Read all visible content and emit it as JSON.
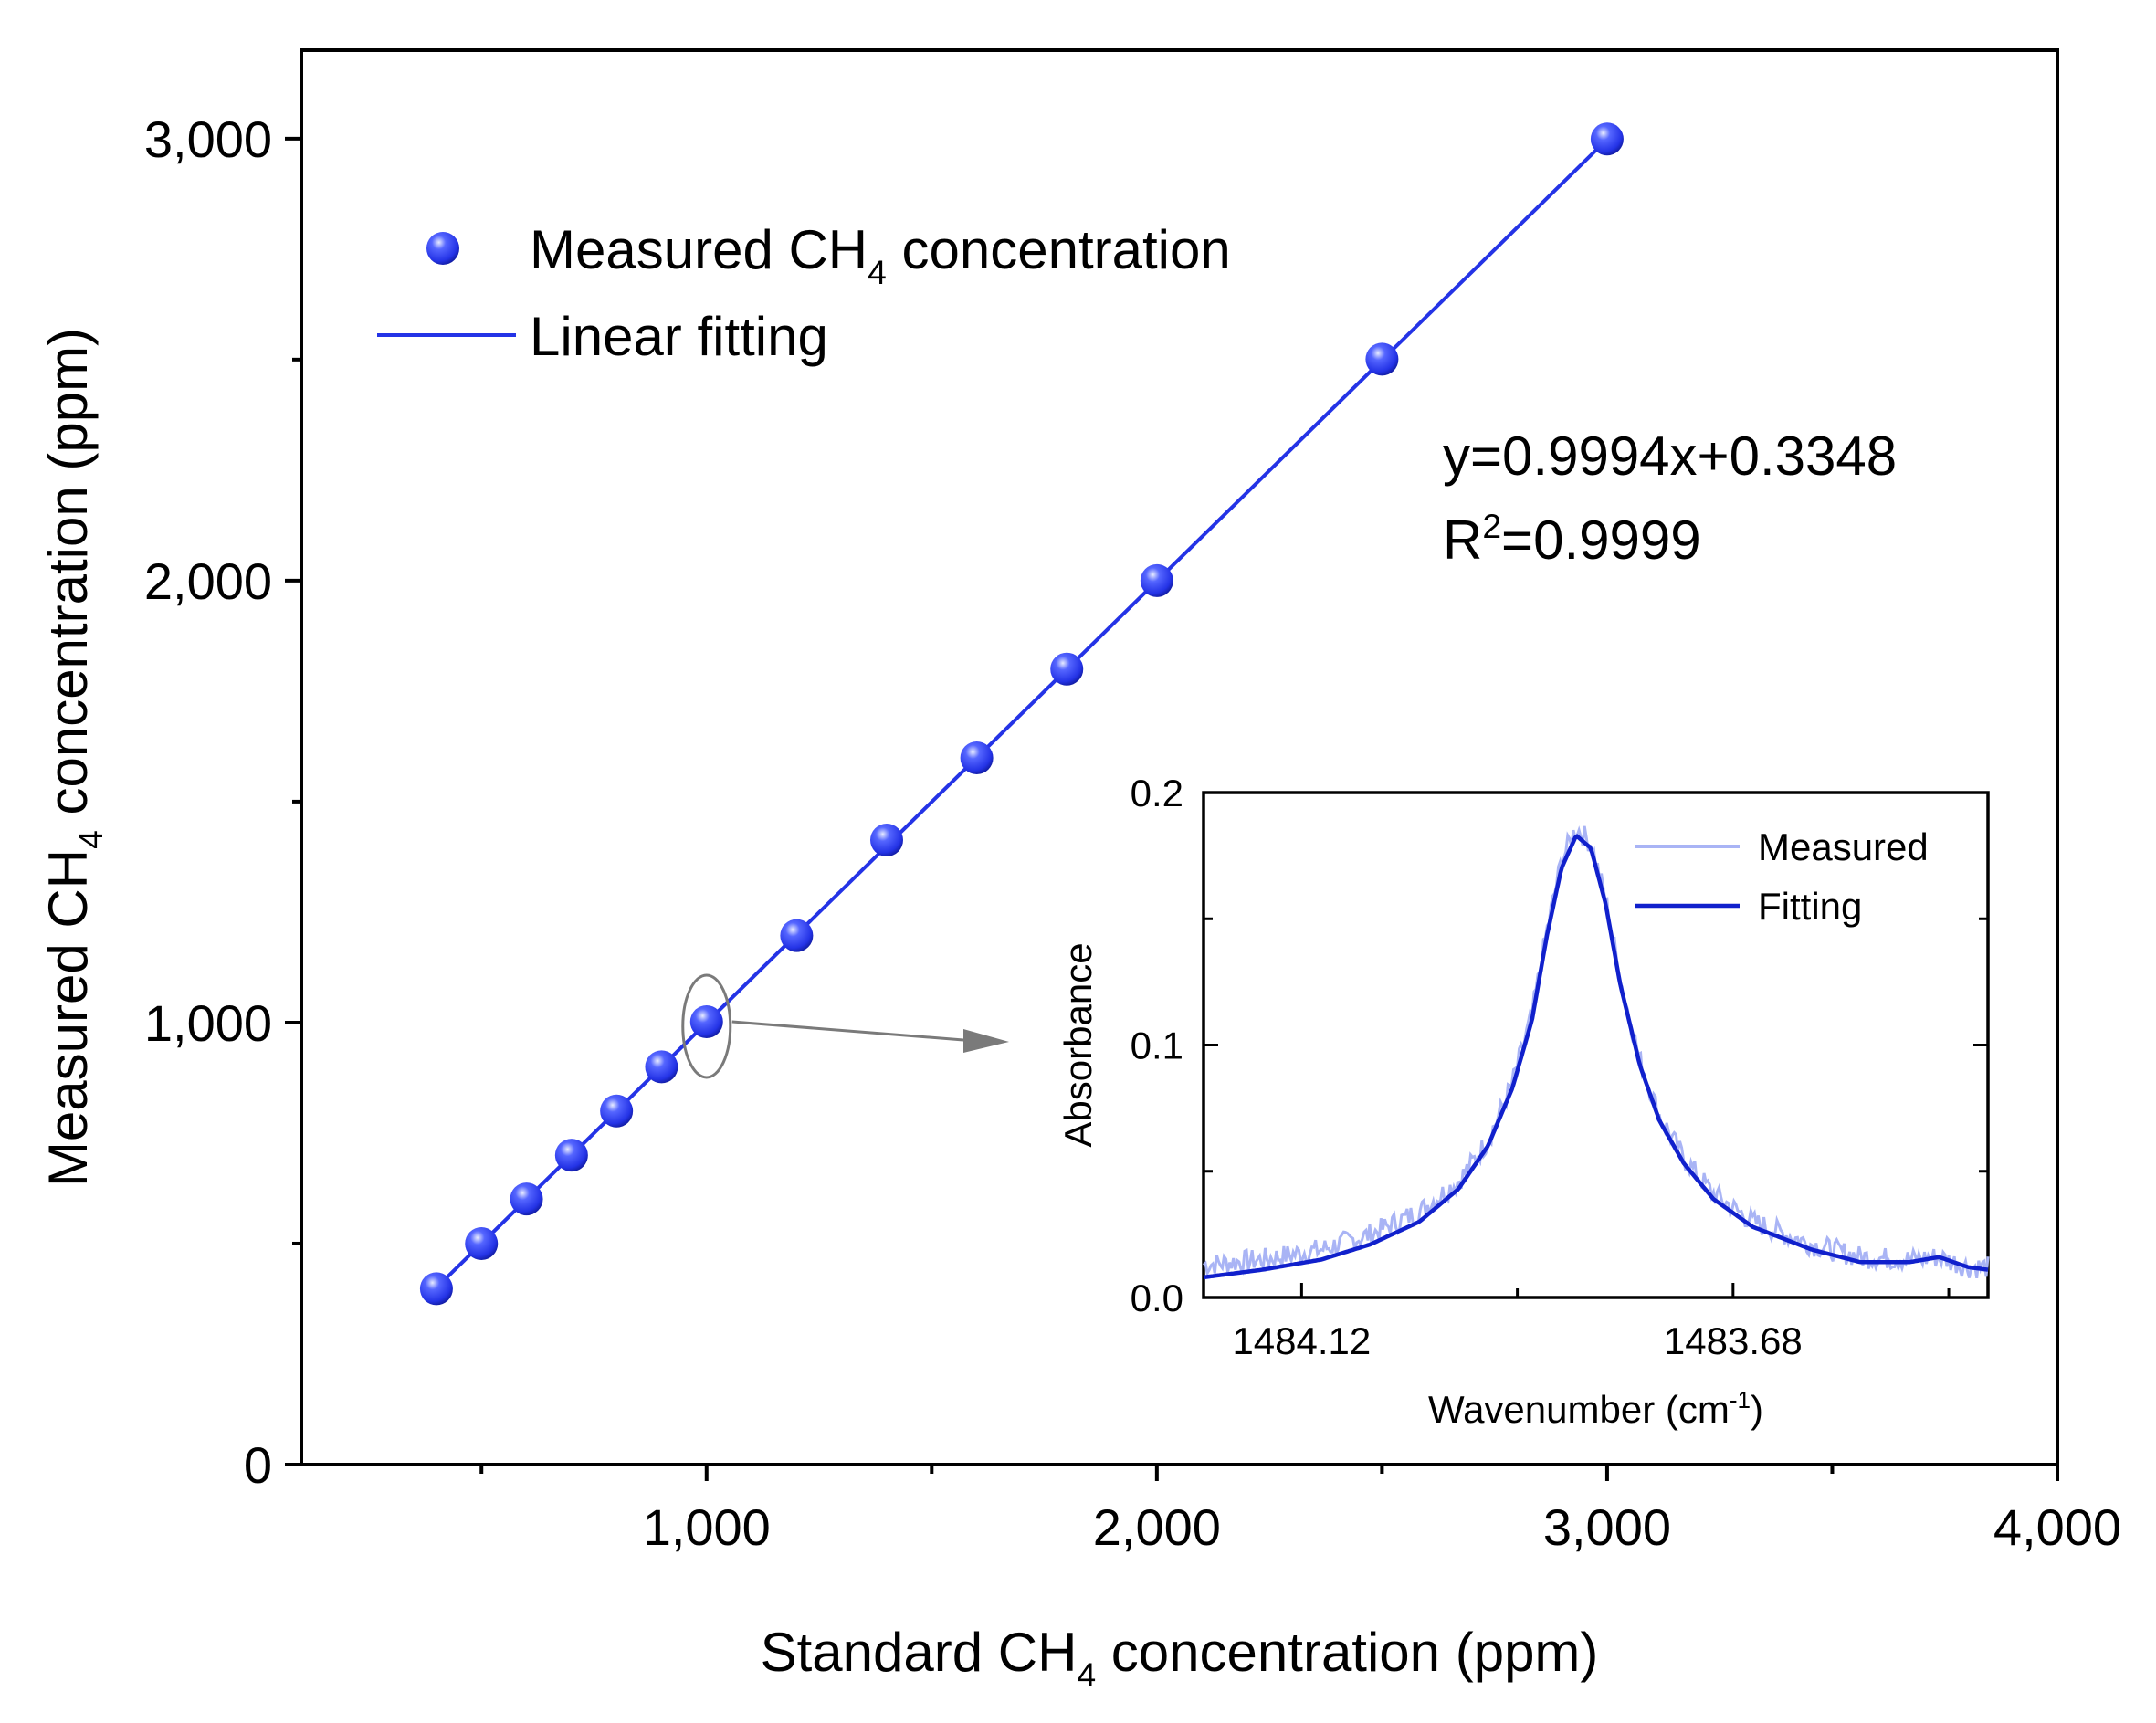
{
  "chart_data": [
    {
      "type": "scatter",
      "xlabel": {
        "pre": "Standard CH",
        "sub": "4",
        "post": " concentration (ppm)"
      },
      "ylabel": {
        "pre": "Measured CH",
        "sub": "4",
        "post": " concentration (ppm)"
      },
      "xlim": [
        100,
        4000
      ],
      "ylim": [
        0,
        3200
      ],
      "xticks": [
        {
          "value": 1000,
          "label": "1,000"
        },
        {
          "value": 2000,
          "label": "2,000"
        },
        {
          "value": 3000,
          "label": "3,000"
        },
        {
          "value": 4000,
          "label": "4,000"
        }
      ],
      "xminor": [
        500,
        1500,
        2500,
        3500
      ],
      "yticks": [
        {
          "value": 0,
          "label": "0"
        },
        {
          "value": 1000,
          "label": "1,000"
        },
        {
          "value": 2000,
          "label": "2,000"
        },
        {
          "value": 3000,
          "label": "3,000"
        }
      ],
      "yminor": [
        500,
        1500,
        2500
      ],
      "series": [
        {
          "name": {
            "pre": "Measured CH",
            "sub": "4",
            "post": " concentration"
          },
          "kind": "points",
          "color": "#2433e6",
          "x": [
            400,
            500,
            600,
            700,
            800,
            900,
            1000,
            1200,
            1400,
            1600,
            1800,
            2000,
            2500,
            3000
          ],
          "y": [
            398,
            500,
            601,
            700,
            800,
            900,
            1002,
            1197,
            1413,
            1599,
            1800,
            2000,
            2501,
            2999
          ]
        },
        {
          "name": "Linear fitting",
          "kind": "line",
          "color": "#2433e6",
          "slope": 0.9994,
          "intercept": 0.3348,
          "x_range": [
            400,
            3000
          ]
        }
      ],
      "annotations": {
        "equation": "y=0.9994x+0.3348",
        "r2": {
          "pre": "R",
          "sup": "2",
          "post": "=0.9999"
        }
      },
      "highlight_point": {
        "x": 1000,
        "y": 1002
      },
      "legend_position": "top-left"
    },
    {
      "type": "line",
      "xlabel": {
        "pre": "Wavenumber (cm",
        "sup": "-1",
        "post": ")"
      },
      "ylabel": "Absorbance",
      "xlim": [
        1484.22,
        1483.42
      ],
      "x_reversed": true,
      "ylim": [
        0,
        0.2
      ],
      "xticks": [
        {
          "value": 1484.12,
          "label": "1484.12"
        },
        {
          "value": 1483.68,
          "label": "1483.68"
        }
      ],
      "xminor": [
        1483.9,
        1483.46
      ],
      "yticks": [
        {
          "value": 0.0,
          "label": "0.0"
        },
        {
          "value": 0.1,
          "label": "0.1"
        },
        {
          "value": 0.2,
          "label": "0.2"
        }
      ],
      "yminor": [
        0.05,
        0.15
      ],
      "series": [
        {
          "name": "Measured",
          "color": "#a9b4f5",
          "noisy": true,
          "x": [
            1484.22,
            1484.16,
            1484.1,
            1484.05,
            1484.0,
            1483.96,
            1483.93,
            1483.905,
            1483.885,
            1483.87,
            1483.855,
            1483.84,
            1483.825,
            1483.81,
            1483.795,
            1483.775,
            1483.755,
            1483.73,
            1483.7,
            1483.66,
            1483.6,
            1483.55,
            1483.5,
            1483.47,
            1483.44,
            1483.42
          ],
          "y": [
            0.013,
            0.015,
            0.019,
            0.025,
            0.034,
            0.046,
            0.062,
            0.085,
            0.112,
            0.145,
            0.173,
            0.186,
            0.18,
            0.158,
            0.126,
            0.094,
            0.072,
            0.055,
            0.041,
            0.03,
            0.021,
            0.016,
            0.015,
            0.016,
            0.012,
            0.012
          ]
        },
        {
          "name": "Fitting",
          "color": "#1020cc",
          "x": [
            1484.22,
            1484.16,
            1484.1,
            1484.05,
            1484.0,
            1483.96,
            1483.93,
            1483.905,
            1483.885,
            1483.87,
            1483.855,
            1483.84,
            1483.825,
            1483.81,
            1483.795,
            1483.775,
            1483.755,
            1483.73,
            1483.7,
            1483.66,
            1483.6,
            1483.55,
            1483.5,
            1483.47,
            1483.44,
            1483.42
          ],
          "y": [
            0.008,
            0.011,
            0.015,
            0.021,
            0.03,
            0.043,
            0.06,
            0.083,
            0.11,
            0.143,
            0.17,
            0.183,
            0.178,
            0.156,
            0.124,
            0.092,
            0.07,
            0.053,
            0.039,
            0.028,
            0.019,
            0.014,
            0.014,
            0.016,
            0.012,
            0.011
          ]
        }
      ],
      "legend_position": "top-right"
    }
  ]
}
